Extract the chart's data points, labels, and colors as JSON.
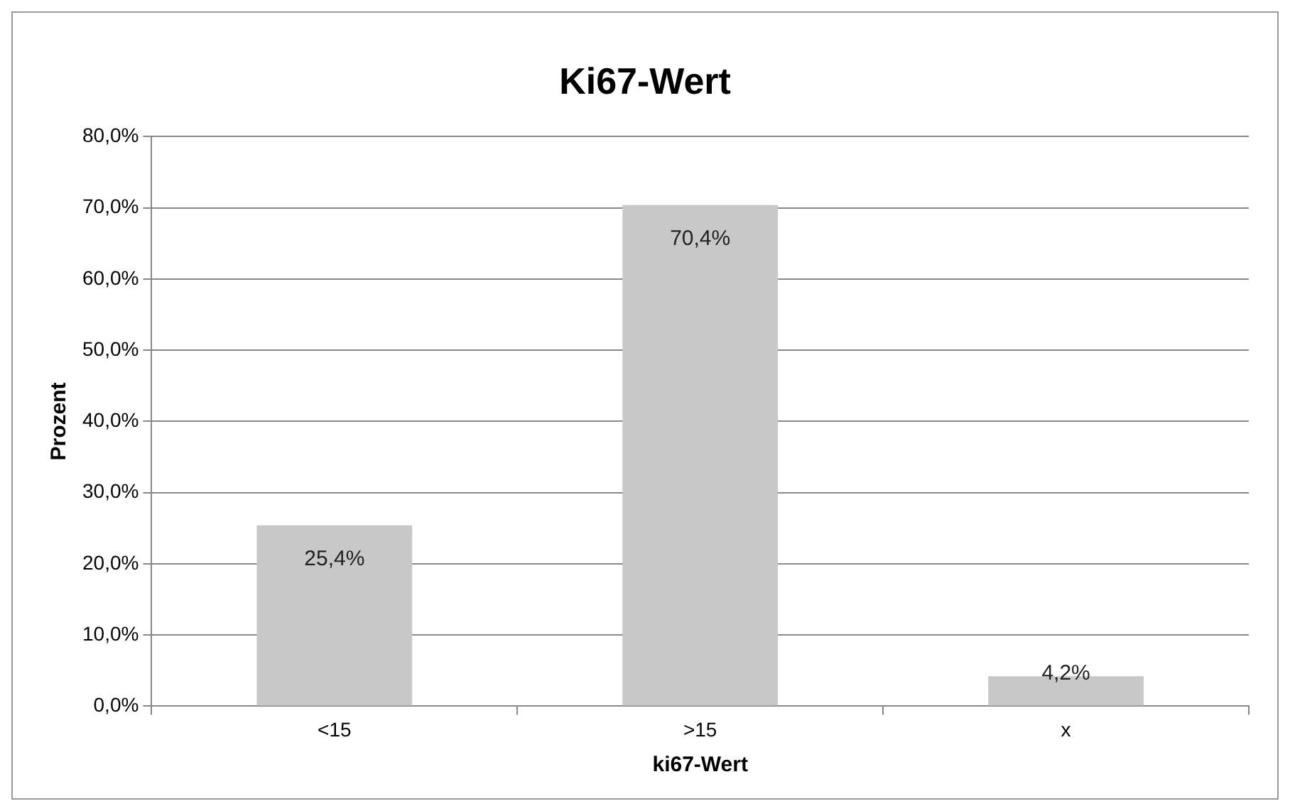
{
  "chart_data": {
    "type": "bar",
    "title": "Ki67-Wert",
    "xlabel": "ki67-Wert",
    "ylabel": "Prozent",
    "categories": [
      "<15",
      ">15",
      "x"
    ],
    "values": [
      25.4,
      70.4,
      4.2
    ],
    "value_labels": [
      "25,4%",
      "70,4%",
      "4,2%"
    ],
    "color": "#c8c8c8",
    "ylim": [
      0,
      80
    ],
    "yticks": [
      {
        "value": 0,
        "label": "0,0%"
      },
      {
        "value": 10,
        "label": "10,0%"
      },
      {
        "value": 20,
        "label": "20,0%"
      },
      {
        "value": 30,
        "label": "30,0%"
      },
      {
        "value": 40,
        "label": "40,0%"
      },
      {
        "value": 50,
        "label": "50,0%"
      },
      {
        "value": 60,
        "label": "60,0%"
      },
      {
        "value": 70,
        "label": "70,0%"
      },
      {
        "value": 80,
        "label": "80,0%"
      }
    ],
    "grid": "y",
    "legend": false
  }
}
